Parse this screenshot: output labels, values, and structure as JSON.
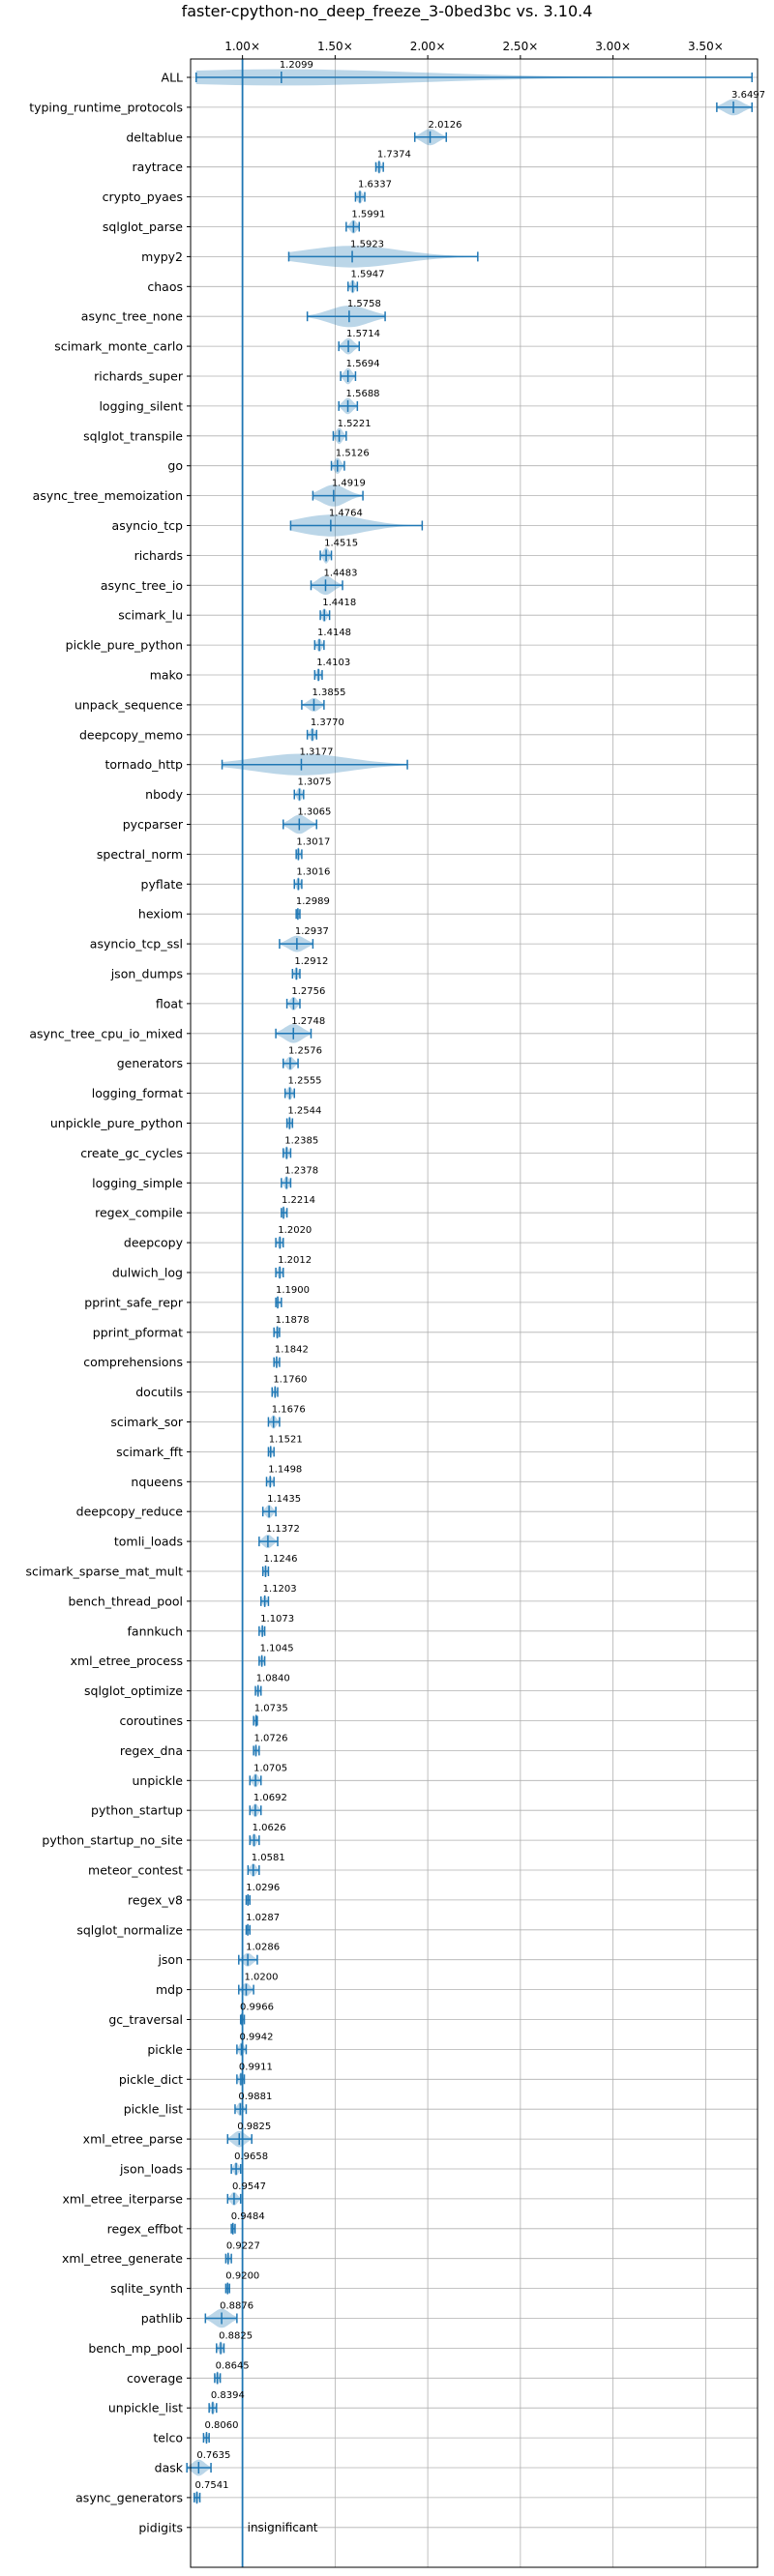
{
  "chart_data": {
    "type": "violin",
    "title": "faster-cpython-no_deep_freeze_3-0bed3bc vs. 3.10.4",
    "xlim": [
      0.72,
      3.78
    ],
    "x_ticks": [
      1.0,
      1.5,
      2.0,
      2.5,
      3.0,
      3.5
    ],
    "x_tick_labels": [
      "1.00×",
      "1.50×",
      "2.00×",
      "2.50×",
      "3.00×",
      "3.50×"
    ],
    "reference_line": 1.0,
    "grid": true,
    "colors": {
      "violin": "#1f77b4",
      "grid": "#b0b0b0"
    },
    "benchmarks": [
      {
        "name": "ALL",
        "value": 1.2099,
        "label": "1.2099",
        "lo": 0.75,
        "hi": 3.75,
        "spread": 0.6
      },
      {
        "name": "typing_runtime_protocols",
        "value": 3.6497,
        "label": "3.6497",
        "lo": 3.56,
        "hi": 3.75,
        "spread": 0.6
      },
      {
        "name": "deltablue",
        "value": 2.0126,
        "label": "2.0126",
        "lo": 1.93,
        "hi": 2.1,
        "spread": 0.6
      },
      {
        "name": "raytrace",
        "value": 1.7374,
        "label": "1.7374",
        "lo": 1.72,
        "hi": 1.76,
        "spread": 0.5
      },
      {
        "name": "crypto_pyaes",
        "value": 1.6337,
        "label": "1.6337",
        "lo": 1.61,
        "hi": 1.66,
        "spread": 0.5
      },
      {
        "name": "sqlglot_parse",
        "value": 1.5991,
        "label": "1.5991",
        "lo": 1.56,
        "hi": 1.63,
        "spread": 0.5
      },
      {
        "name": "mypy2",
        "value": 1.5923,
        "label": "1.5923",
        "lo": 1.25,
        "hi": 2.27,
        "spread": 0.8
      },
      {
        "name": "chaos",
        "value": 1.5947,
        "label": "1.5947",
        "lo": 1.57,
        "hi": 1.62,
        "spread": 0.5
      },
      {
        "name": "async_tree_none",
        "value": 1.5758,
        "label": "1.5758",
        "lo": 1.35,
        "hi": 1.77,
        "spread": 0.8
      },
      {
        "name": "scimark_monte_carlo",
        "value": 1.5714,
        "label": "1.5714",
        "lo": 1.52,
        "hi": 1.63,
        "spread": 0.6
      },
      {
        "name": "richards_super",
        "value": 1.5694,
        "label": "1.5694",
        "lo": 1.53,
        "hi": 1.61,
        "spread": 0.6
      },
      {
        "name": "logging_silent",
        "value": 1.5688,
        "label": "1.5688",
        "lo": 1.52,
        "hi": 1.62,
        "spread": 0.6
      },
      {
        "name": "sqlglot_transpile",
        "value": 1.5221,
        "label": "1.5221",
        "lo": 1.49,
        "hi": 1.56,
        "spread": 0.6
      },
      {
        "name": "go",
        "value": 1.5126,
        "label": "1.5126",
        "lo": 1.48,
        "hi": 1.55,
        "spread": 0.6
      },
      {
        "name": "async_tree_memoization",
        "value": 1.4919,
        "label": "1.4919",
        "lo": 1.38,
        "hi": 1.65,
        "spread": 0.8
      },
      {
        "name": "asyncio_tcp",
        "value": 1.4764,
        "label": "1.4764",
        "lo": 1.26,
        "hi": 1.97,
        "spread": 0.8
      },
      {
        "name": "richards",
        "value": 1.4515,
        "label": "1.4515",
        "lo": 1.42,
        "hi": 1.48,
        "spread": 0.6
      },
      {
        "name": "async_tree_io",
        "value": 1.4483,
        "label": "1.4483",
        "lo": 1.37,
        "hi": 1.54,
        "spread": 0.7
      },
      {
        "name": "scimark_lu",
        "value": 1.4418,
        "label": "1.4418",
        "lo": 1.42,
        "hi": 1.47,
        "spread": 0.5
      },
      {
        "name": "pickle_pure_python",
        "value": 1.4148,
        "label": "1.4148",
        "lo": 1.39,
        "hi": 1.44,
        "spread": 0.5
      },
      {
        "name": "mako",
        "value": 1.4103,
        "label": "1.4103",
        "lo": 1.39,
        "hi": 1.43,
        "spread": 0.5
      },
      {
        "name": "unpack_sequence",
        "value": 1.3855,
        "label": "1.3855",
        "lo": 1.32,
        "hi": 1.44,
        "spread": 0.5
      },
      {
        "name": "deepcopy_memo",
        "value": 1.377,
        "label": "1.3770",
        "lo": 1.35,
        "hi": 1.4,
        "spread": 0.5
      },
      {
        "name": "tornado_http",
        "value": 1.3177,
        "label": "1.3177",
        "lo": 0.89,
        "hi": 1.89,
        "spread": 0.8
      },
      {
        "name": "nbody",
        "value": 1.3075,
        "label": "1.3075",
        "lo": 1.28,
        "hi": 1.33,
        "spread": 0.5
      },
      {
        "name": "pycparser",
        "value": 1.3065,
        "label": "1.3065",
        "lo": 1.22,
        "hi": 1.4,
        "spread": 0.7
      },
      {
        "name": "spectral_norm",
        "value": 1.3017,
        "label": "1.3017",
        "lo": 1.29,
        "hi": 1.32,
        "spread": 0.5
      },
      {
        "name": "pyflate",
        "value": 1.3016,
        "label": "1.3016",
        "lo": 1.28,
        "hi": 1.32,
        "spread": 0.5
      },
      {
        "name": "hexiom",
        "value": 1.2989,
        "label": "1.2989",
        "lo": 1.29,
        "hi": 1.31,
        "spread": 0.4
      },
      {
        "name": "asyncio_tcp_ssl",
        "value": 1.2937,
        "label": "1.2937",
        "lo": 1.2,
        "hi": 1.38,
        "spread": 0.6
      },
      {
        "name": "json_dumps",
        "value": 1.2912,
        "label": "1.2912",
        "lo": 1.27,
        "hi": 1.31,
        "spread": 0.5
      },
      {
        "name": "float",
        "value": 1.2756,
        "label": "1.2756",
        "lo": 1.24,
        "hi": 1.31,
        "spread": 0.5
      },
      {
        "name": "async_tree_cpu_io_mixed",
        "value": 1.2748,
        "label": "1.2748",
        "lo": 1.18,
        "hi": 1.37,
        "spread": 0.7
      },
      {
        "name": "generators",
        "value": 1.2576,
        "label": "1.2576",
        "lo": 1.22,
        "hi": 1.3,
        "spread": 0.5
      },
      {
        "name": "logging_format",
        "value": 1.2555,
        "label": "1.2555",
        "lo": 1.23,
        "hi": 1.28,
        "spread": 0.5
      },
      {
        "name": "unpickle_pure_python",
        "value": 1.2544,
        "label": "1.2544",
        "lo": 1.24,
        "hi": 1.27,
        "spread": 0.5
      },
      {
        "name": "create_gc_cycles",
        "value": 1.2385,
        "label": "1.2385",
        "lo": 1.22,
        "hi": 1.26,
        "spread": 0.5
      },
      {
        "name": "logging_simple",
        "value": 1.2378,
        "label": "1.2378",
        "lo": 1.21,
        "hi": 1.26,
        "spread": 0.5
      },
      {
        "name": "regex_compile",
        "value": 1.2214,
        "label": "1.2214",
        "lo": 1.21,
        "hi": 1.24,
        "spread": 0.5
      },
      {
        "name": "deepcopy",
        "value": 1.202,
        "label": "1.2020",
        "lo": 1.18,
        "hi": 1.22,
        "spread": 0.5
      },
      {
        "name": "dulwich_log",
        "value": 1.2012,
        "label": "1.2012",
        "lo": 1.18,
        "hi": 1.22,
        "spread": 0.5
      },
      {
        "name": "pprint_safe_repr",
        "value": 1.19,
        "label": "1.1900",
        "lo": 1.18,
        "hi": 1.21,
        "spread": 0.5
      },
      {
        "name": "pprint_pformat",
        "value": 1.1878,
        "label": "1.1878",
        "lo": 1.17,
        "hi": 1.2,
        "spread": 0.5
      },
      {
        "name": "comprehensions",
        "value": 1.1842,
        "label": "1.1842",
        "lo": 1.17,
        "hi": 1.2,
        "spread": 0.4
      },
      {
        "name": "docutils",
        "value": 1.176,
        "label": "1.1760",
        "lo": 1.16,
        "hi": 1.19,
        "spread": 0.4
      },
      {
        "name": "scimark_sor",
        "value": 1.1676,
        "label": "1.1676",
        "lo": 1.14,
        "hi": 1.2,
        "spread": 0.5
      },
      {
        "name": "scimark_fft",
        "value": 1.1521,
        "label": "1.1521",
        "lo": 1.14,
        "hi": 1.17,
        "spread": 0.4
      },
      {
        "name": "nqueens",
        "value": 1.1498,
        "label": "1.1498",
        "lo": 1.13,
        "hi": 1.17,
        "spread": 0.4
      },
      {
        "name": "deepcopy_reduce",
        "value": 1.1435,
        "label": "1.1435",
        "lo": 1.11,
        "hi": 1.18,
        "spread": 0.5
      },
      {
        "name": "tomli_loads",
        "value": 1.1372,
        "label": "1.1372",
        "lo": 1.09,
        "hi": 1.19,
        "spread": 0.5
      },
      {
        "name": "scimark_sparse_mat_mult",
        "value": 1.1246,
        "label": "1.1246",
        "lo": 1.11,
        "hi": 1.14,
        "spread": 0.4
      },
      {
        "name": "bench_thread_pool",
        "value": 1.1203,
        "label": "1.1203",
        "lo": 1.1,
        "hi": 1.14,
        "spread": 0.4
      },
      {
        "name": "fannkuch",
        "value": 1.1073,
        "label": "1.1073",
        "lo": 1.09,
        "hi": 1.12,
        "spread": 0.4
      },
      {
        "name": "xml_etree_process",
        "value": 1.1045,
        "label": "1.1045",
        "lo": 1.09,
        "hi": 1.12,
        "spread": 0.4
      },
      {
        "name": "sqlglot_optimize",
        "value": 1.084,
        "label": "1.0840",
        "lo": 1.07,
        "hi": 1.1,
        "spread": 0.4
      },
      {
        "name": "coroutines",
        "value": 1.0735,
        "label": "1.0735",
        "lo": 1.06,
        "hi": 1.08,
        "spread": 0.4
      },
      {
        "name": "regex_dna",
        "value": 1.0726,
        "label": "1.0726",
        "lo": 1.06,
        "hi": 1.09,
        "spread": 0.4
      },
      {
        "name": "unpickle",
        "value": 1.0705,
        "label": "1.0705",
        "lo": 1.04,
        "hi": 1.1,
        "spread": 0.5
      },
      {
        "name": "python_startup",
        "value": 1.0692,
        "label": "1.0692",
        "lo": 1.04,
        "hi": 1.1,
        "spread": 0.5
      },
      {
        "name": "python_startup_no_site",
        "value": 1.0626,
        "label": "1.0626",
        "lo": 1.04,
        "hi": 1.09,
        "spread": 0.5
      },
      {
        "name": "meteor_contest",
        "value": 1.0581,
        "label": "1.0581",
        "lo": 1.03,
        "hi": 1.09,
        "spread": 0.5
      },
      {
        "name": "regex_v8",
        "value": 1.0296,
        "label": "1.0296",
        "lo": 1.02,
        "hi": 1.04,
        "spread": 0.4
      },
      {
        "name": "sqlglot_normalize",
        "value": 1.0287,
        "label": "1.0287",
        "lo": 1.02,
        "hi": 1.04,
        "spread": 0.4
      },
      {
        "name": "json",
        "value": 1.0286,
        "label": "1.0286",
        "lo": 0.98,
        "hi": 1.08,
        "spread": 0.5
      },
      {
        "name": "mdp",
        "value": 1.02,
        "label": "1.0200",
        "lo": 0.98,
        "hi": 1.06,
        "spread": 0.5
      },
      {
        "name": "gc_traversal",
        "value": 0.9966,
        "label": "0.9966",
        "lo": 0.99,
        "hi": 1.01,
        "spread": 0.4
      },
      {
        "name": "pickle",
        "value": 0.9942,
        "label": "0.9942",
        "lo": 0.97,
        "hi": 1.02,
        "spread": 0.5
      },
      {
        "name": "pickle_dict",
        "value": 0.9911,
        "label": "0.9911",
        "lo": 0.97,
        "hi": 1.01,
        "spread": 0.5
      },
      {
        "name": "pickle_list",
        "value": 0.9881,
        "label": "0.9881",
        "lo": 0.96,
        "hi": 1.02,
        "spread": 0.5
      },
      {
        "name": "xml_etree_parse",
        "value": 0.9825,
        "label": "0.9825",
        "lo": 0.92,
        "hi": 1.05,
        "spread": 0.6
      },
      {
        "name": "json_loads",
        "value": 0.9658,
        "label": "0.9658",
        "lo": 0.94,
        "hi": 0.99,
        "spread": 0.5
      },
      {
        "name": "xml_etree_iterparse",
        "value": 0.9547,
        "label": "0.9547",
        "lo": 0.92,
        "hi": 0.99,
        "spread": 0.5
      },
      {
        "name": "regex_effbot",
        "value": 0.9484,
        "label": "0.9484",
        "lo": 0.94,
        "hi": 0.96,
        "spread": 0.4
      },
      {
        "name": "xml_etree_generate",
        "value": 0.9227,
        "label": "0.9227",
        "lo": 0.91,
        "hi": 0.94,
        "spread": 0.4
      },
      {
        "name": "sqlite_synth",
        "value": 0.92,
        "label": "0.9200",
        "lo": 0.91,
        "hi": 0.93,
        "spread": 0.4
      },
      {
        "name": "pathlib",
        "value": 0.8876,
        "label": "0.8876",
        "lo": 0.8,
        "hi": 0.97,
        "spread": 0.7
      },
      {
        "name": "bench_mp_pool",
        "value": 0.8825,
        "label": "0.8825",
        "lo": 0.86,
        "hi": 0.9,
        "spread": 0.5
      },
      {
        "name": "coverage",
        "value": 0.8645,
        "label": "0.8645",
        "lo": 0.85,
        "hi": 0.88,
        "spread": 0.5
      },
      {
        "name": "unpickle_list",
        "value": 0.8394,
        "label": "0.8394",
        "lo": 0.82,
        "hi": 0.86,
        "spread": 0.5
      },
      {
        "name": "telco",
        "value": 0.806,
        "label": "0.8060",
        "lo": 0.79,
        "hi": 0.82,
        "spread": 0.4
      },
      {
        "name": "dask",
        "value": 0.7635,
        "label": "0.7635",
        "lo": 0.7,
        "hi": 0.83,
        "spread": 0.6
      },
      {
        "name": "async_generators",
        "value": 0.7541,
        "label": "0.7541",
        "lo": 0.74,
        "hi": 0.77,
        "spread": 0.5
      },
      {
        "name": "pidigits",
        "value": null,
        "label": "insignificant",
        "lo": null,
        "hi": null,
        "spread": 0
      }
    ]
  }
}
